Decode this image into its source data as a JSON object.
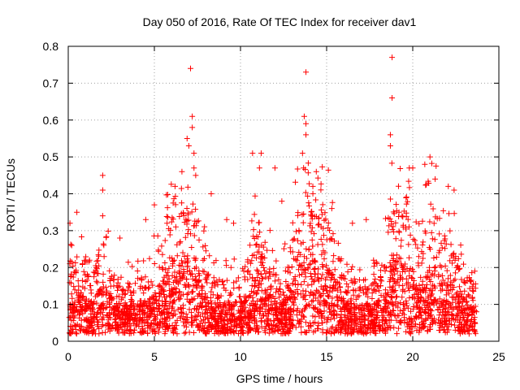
{
  "chart_data": {
    "type": "scatter",
    "title": "Day 050 of 2016, Rate Of TEC Index for receiver dav1",
    "xlabel": "GPS time / hours",
    "ylabel": "ROTI / TECUs",
    "xlim": [
      0,
      25
    ],
    "ylim": [
      0,
      0.8
    ],
    "x_ticks": [
      0,
      5,
      10,
      15,
      20,
      25
    ],
    "y_ticks": [
      0,
      0.1,
      0.2,
      0.3,
      0.4,
      0.5,
      0.6,
      0.7,
      0.8
    ],
    "x_tick_labels": [
      "0",
      "5",
      "10",
      "15",
      "20",
      "25"
    ],
    "y_tick_labels": [
      "0",
      "0.1",
      "0.2",
      "0.3",
      "0.4",
      "0.5",
      "0.6",
      "0.7",
      "0.8"
    ],
    "grid": true,
    "marker": "plus",
    "color": "#ff0000",
    "series": [
      {
        "points": [
          [
            0.1,
            0.32
          ],
          [
            0.2,
            0.26
          ],
          [
            0.5,
            0.35
          ],
          [
            2.0,
            0.45
          ],
          [
            2.0,
            0.41
          ],
          [
            7.1,
            0.74
          ],
          [
            7.2,
            0.61
          ],
          [
            7.2,
            0.58
          ],
          [
            6.9,
            0.55
          ],
          [
            7.0,
            0.53
          ],
          [
            7.3,
            0.51
          ],
          [
            7.3,
            0.47
          ],
          [
            6.6,
            0.46
          ],
          [
            7.4,
            0.45
          ],
          [
            10.7,
            0.51
          ],
          [
            11.2,
            0.51
          ],
          [
            11.1,
            0.47
          ],
          [
            12.0,
            0.47
          ],
          [
            13.8,
            0.73
          ],
          [
            13.7,
            0.61
          ],
          [
            13.8,
            0.59
          ],
          [
            13.8,
            0.56
          ],
          [
            13.6,
            0.51
          ],
          [
            14.4,
            0.46
          ],
          [
            18.8,
            0.77
          ],
          [
            18.8,
            0.66
          ],
          [
            18.7,
            0.56
          ],
          [
            18.7,
            0.53
          ],
          [
            20.7,
            0.48
          ],
          [
            21.0,
            0.5
          ],
          [
            19.8,
            0.47
          ],
          [
            20.0,
            0.47
          ],
          [
            22.4,
            0.41
          ],
          [
            6.2,
            0.42
          ],
          [
            8.3,
            0.4
          ],
          [
            14.2,
            0.42
          ],
          [
            21.3,
            0.44
          ],
          [
            16.5,
            0.32
          ],
          [
            3.0,
            0.28
          ],
          [
            4.5,
            0.33
          ],
          [
            5.0,
            0.37
          ],
          [
            9.2,
            0.33
          ],
          [
            9.6,
            0.32
          ],
          [
            12.4,
            0.38
          ],
          [
            15.3,
            0.36
          ],
          [
            17.3,
            0.33
          ],
          [
            19.2,
            0.35
          ],
          [
            23.6,
            0.19
          ],
          [
            23.7,
            0.08
          ]
        ]
      }
    ]
  }
}
